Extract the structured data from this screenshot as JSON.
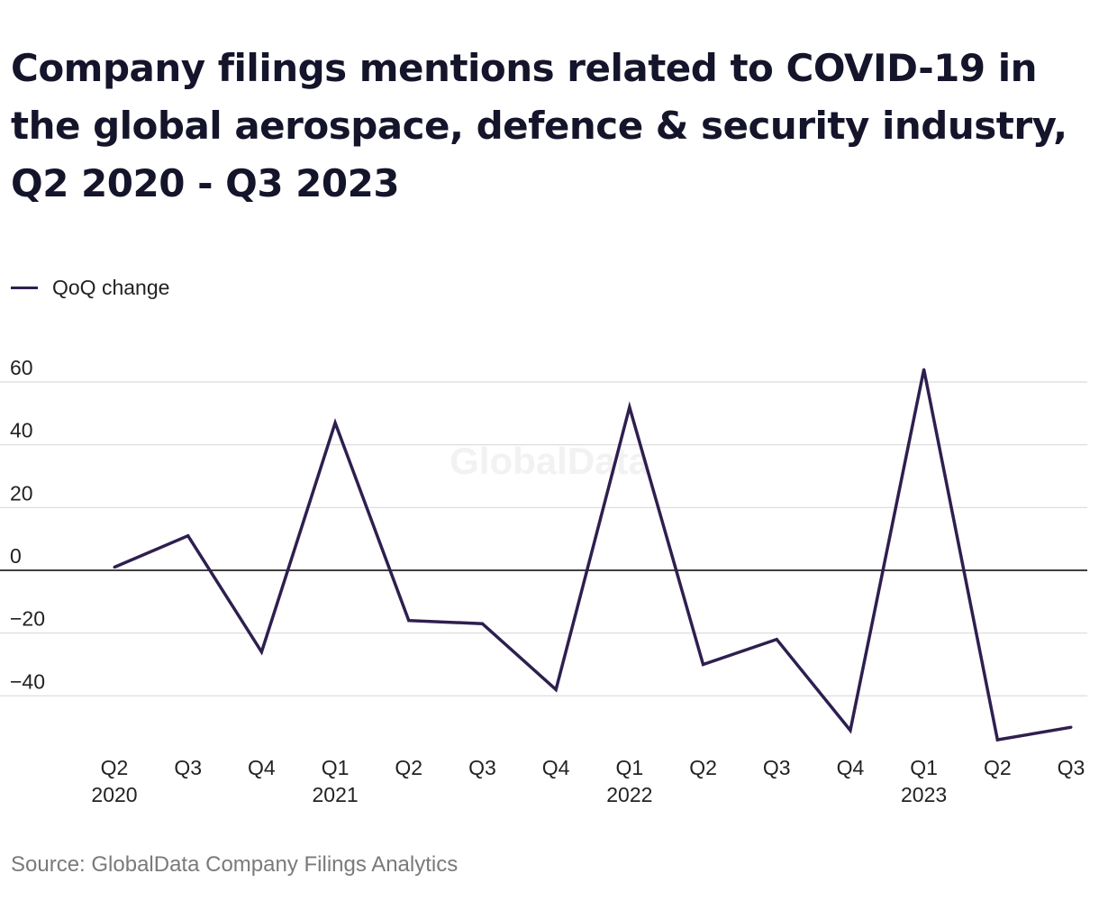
{
  "title": "Company filings mentions related to COVID-19 in the global aerospace, defence & security industry, Q2 2020 - Q3 2023",
  "source": "Source: GlobalData Company Filings Analytics",
  "watermark": "GlobalData",
  "colors": {
    "line": "#2e1f4f",
    "grid": "#d9d9d9",
    "zero": "#000000",
    "text": "#222222"
  },
  "chart_data": {
    "type": "line",
    "title": "Company filings mentions related to COVID-19 in the global aerospace, defence & security industry, Q2 2020 - Q3 2023",
    "categories": [
      "Q2 2020",
      "Q3 2020",
      "Q4 2020",
      "Q1 2021",
      "Q2 2021",
      "Q3 2021",
      "Q4 2021",
      "Q1 2022",
      "Q2 2022",
      "Q3 2022",
      "Q4 2022",
      "Q1 2023",
      "Q2 2023",
      "Q3 2023"
    ],
    "tick_labels": [
      {
        "q": "Q2",
        "year": "2020"
      },
      {
        "q": "Q3",
        "year": ""
      },
      {
        "q": "Q4",
        "year": ""
      },
      {
        "q": "Q1",
        "year": "2021"
      },
      {
        "q": "Q2",
        "year": ""
      },
      {
        "q": "Q3",
        "year": ""
      },
      {
        "q": "Q4",
        "year": ""
      },
      {
        "q": "Q1",
        "year": "2022"
      },
      {
        "q": "Q2",
        "year": ""
      },
      {
        "q": "Q3",
        "year": ""
      },
      {
        "q": "Q4",
        "year": ""
      },
      {
        "q": "Q1",
        "year": "2023"
      },
      {
        "q": "Q2",
        "year": ""
      },
      {
        "q": "Q3",
        "year": ""
      }
    ],
    "series": [
      {
        "name": "QoQ change",
        "values": [
          1,
          11,
          -26,
          47,
          -16,
          -17,
          -38,
          52,
          -30,
          -22,
          -51,
          64,
          -54,
          -50
        ]
      }
    ],
    "ylim": [
      -55,
      65
    ],
    "yticks": [
      60,
      40,
      20,
      0,
      -20,
      -40
    ],
    "ytick_labels": [
      "60",
      "40",
      "20",
      "0",
      "−20",
      "−40"
    ],
    "grid": true,
    "legend": "top-left",
    "xlabel": "",
    "ylabel": ""
  }
}
